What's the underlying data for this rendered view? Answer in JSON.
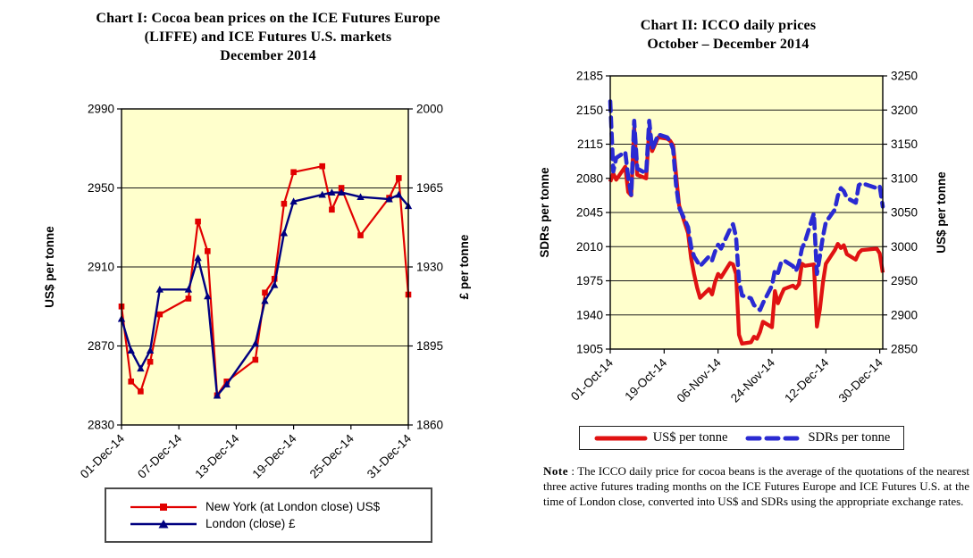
{
  "page": {
    "background": "#ffffff",
    "plot_background": "#ffffcc"
  },
  "note": {
    "label": "Note",
    "text": " : The ICCO daily price for cocoa beans is the average of the quotations of the nearest three active futures trading months on the ICE Futures Europe and ICE Futures U.S. at the time of London close, converted into US$ and SDRs using the appropriate exchange rates."
  },
  "chart_data": [
    {
      "id": "chart1",
      "type": "line",
      "title": "Chart I: Cocoa bean prices on the ICE Futures Europe (LIFFE) and ICE Futures U.S. markets, December 2014",
      "title_lines": [
        "Chart I:  Cocoa bean prices on the ICE Futures Europe",
        "(LIFFE) and ICE Futures U.S. markets",
        "December 2014"
      ],
      "plot_bg": "#ffffcc",
      "grid": true,
      "legend_position": "bottom",
      "x_axis": {
        "span_start": "2014-12-01",
        "span_end": "2014-12-31",
        "tick_dates": [
          "2014-12-01",
          "2014-12-07",
          "2014-12-13",
          "2014-12-19",
          "2014-12-25",
          "2014-12-31"
        ],
        "tick_labels": [
          "01-Dec-14",
          "07-Dec-14",
          "13-Dec-14",
          "19-Dec-14",
          "25-Dec-14",
          "31-Dec-14"
        ]
      },
      "y_left": {
        "label": "US$ per tonne",
        "min": 2830,
        "max": 2990,
        "ticks": [
          2830,
          2870,
          2910,
          2950,
          2990
        ]
      },
      "y_right": {
        "label": "£ per tonne",
        "min": 1860,
        "max": 2000,
        "ticks": [
          1860,
          1895,
          1930,
          1965,
          2000
        ]
      },
      "dates": [
        "2014-12-01",
        "2014-12-02",
        "2014-12-03",
        "2014-12-04",
        "2014-12-05",
        "2014-12-08",
        "2014-12-09",
        "2014-12-10",
        "2014-12-11",
        "2014-12-12",
        "2014-12-15",
        "2014-12-16",
        "2014-12-17",
        "2014-12-18",
        "2014-12-19",
        "2014-12-22",
        "2014-12-23",
        "2014-12-24",
        "2014-12-26",
        "2014-12-29",
        "2014-12-30",
        "2014-12-31"
      ],
      "series": [
        {
          "name": "New York (at London close) US$",
          "axis": "left",
          "color": "#e10000",
          "marker": "square",
          "values": [
            2890,
            2852,
            2847,
            2862,
            2886,
            2894,
            2933,
            2918,
            2845,
            2852,
            2863,
            2897,
            2904,
            2942,
            2958,
            2961,
            2939,
            2950,
            2926,
            2945,
            2955,
            2896
          ]
        },
        {
          "name": "London (close) £",
          "axis": "right",
          "color": "#000080",
          "marker": "triangle",
          "values": [
            1907,
            1893,
            1885,
            1893,
            1920,
            1920,
            1934,
            1917,
            1873,
            1878,
            1896,
            1915,
            1922,
            1945,
            1959,
            1962,
            1963,
            1963,
            1961,
            1960,
            1962,
            1957
          ]
        }
      ]
    },
    {
      "id": "chart2",
      "type": "line",
      "title": "Chart II: ICCO daily prices, October – December 2014",
      "title_lines": [
        "Chart II:  ICCO daily prices",
        "October – December 2014"
      ],
      "plot_bg": "#ffffcc",
      "grid": true,
      "legend_position": "bottom",
      "x_axis": {
        "span_start": "2014-10-01",
        "span_end": "2014-12-31",
        "tick_dates": [
          "2014-10-01",
          "2014-10-19",
          "2014-11-06",
          "2014-11-24",
          "2014-12-12",
          "2014-12-30"
        ],
        "tick_labels": [
          "01-Oct-14",
          "19-Oct-14",
          "06-Nov-14",
          "24-Nov-14",
          "12-Dec-14",
          "30-Dec-14"
        ]
      },
      "y_left": {
        "label": "SDRs per tonne",
        "min": 1905,
        "max": 2185,
        "ticks": [
          1905,
          1940,
          1975,
          2010,
          2045,
          2080,
          2115,
          2150,
          2185
        ]
      },
      "y_right": {
        "label": "US$ per tonne",
        "min": 2850,
        "max": 3250,
        "ticks": [
          2850,
          2900,
          2950,
          3000,
          3050,
          3100,
          3150,
          3200,
          3250
        ]
      },
      "dates": [
        "2014-10-01",
        "2014-10-02",
        "2014-10-03",
        "2014-10-06",
        "2014-10-07",
        "2014-10-08",
        "2014-10-09",
        "2014-10-10",
        "2014-10-13",
        "2014-10-14",
        "2014-10-15",
        "2014-10-16",
        "2014-10-17",
        "2014-10-20",
        "2014-10-21",
        "2014-10-22",
        "2014-10-23",
        "2014-10-24",
        "2014-10-27",
        "2014-10-28",
        "2014-10-29",
        "2014-10-30",
        "2014-10-31",
        "2014-11-03",
        "2014-11-04",
        "2014-11-05",
        "2014-11-06",
        "2014-11-07",
        "2014-11-10",
        "2014-11-11",
        "2014-11-12",
        "2014-11-13",
        "2014-11-14",
        "2014-11-17",
        "2014-11-18",
        "2014-11-19",
        "2014-11-20",
        "2014-11-21",
        "2014-11-24",
        "2014-11-25",
        "2014-11-26",
        "2014-11-27",
        "2014-11-28",
        "2014-12-01",
        "2014-12-02",
        "2014-12-03",
        "2014-12-04",
        "2014-12-05",
        "2014-12-08",
        "2014-12-09",
        "2014-12-10",
        "2014-12-11",
        "2014-12-12",
        "2014-12-15",
        "2014-12-16",
        "2014-12-17",
        "2014-12-18",
        "2014-12-19",
        "2014-12-22",
        "2014-12-23",
        "2014-12-24",
        "2014-12-29",
        "2014-12-30",
        "2014-12-31"
      ],
      "series": [
        {
          "name": "US$ per tonne",
          "axis": "right",
          "color": "#e01212",
          "marker": "none",
          "values": [
            3095,
            3107,
            3098,
            3117,
            3080,
            3075,
            3174,
            3105,
            3100,
            3172,
            3140,
            3150,
            3160,
            3158,
            3155,
            3148,
            3105,
            3060,
            3020,
            2983,
            2960,
            2940,
            2925,
            2938,
            2930,
            2948,
            2960,
            2955,
            2976,
            2974,
            2960,
            2871,
            2858,
            2860,
            2868,
            2865,
            2875,
            2890,
            2882,
            2935,
            2917,
            2928,
            2938,
            2943,
            2939,
            2945,
            2975,
            2972,
            2974,
            2883,
            2908,
            2947,
            2975,
            2995,
            3004,
            2998,
            3002,
            2989,
            2981,
            2991,
            2995,
            2997,
            2990,
            2962
          ]
        },
        {
          "name": "SDRs per tonne",
          "axis": "left",
          "color": "#2a2ad2",
          "marker": "none",
          "dash": "11 7",
          "values": [
            2159,
            2087,
            2101,
            2107,
            2081,
            2063,
            2139,
            2090,
            2085,
            2139,
            2110,
            2117,
            2125,
            2122,
            2118,
            2110,
            2073,
            2050,
            2030,
            2010,
            2000,
            1995,
            1990,
            2000,
            1996,
            2005,
            2012,
            2008,
            2028,
            2033,
            2020,
            1975,
            1960,
            1957,
            1950,
            1948,
            1945,
            1952,
            1970,
            1986,
            1983,
            1993,
            1996,
            1990,
            1985,
            1993,
            2008,
            2015,
            2044,
            1982,
            2000,
            2020,
            2035,
            2048,
            2062,
            2070,
            2067,
            2060,
            2055,
            2073,
            2075,
            2070,
            2072,
            2051
          ]
        }
      ]
    }
  ]
}
